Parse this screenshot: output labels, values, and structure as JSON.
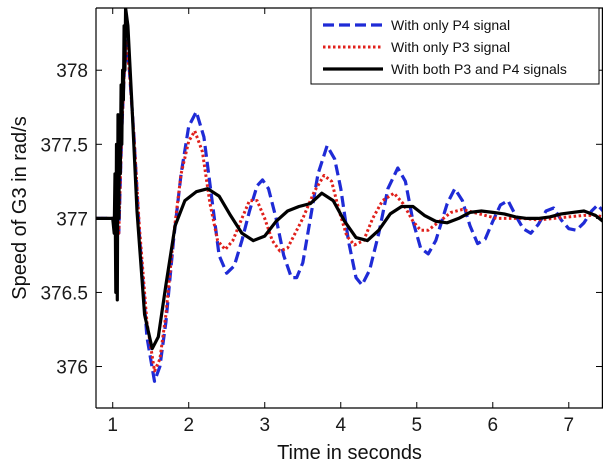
{
  "chart_data": {
    "type": "line",
    "title": "",
    "xlabel": "Time in seconds",
    "ylabel": "Speed of G3 in rad/s",
    "xlim": [
      0.78,
      7.45
    ],
    "ylim": [
      375.72,
      378.42
    ],
    "x_ticks": [
      1,
      2,
      3,
      4,
      5,
      6,
      7
    ],
    "x_tick_labels": [
      "1",
      "2",
      "3",
      "4",
      "5",
      "6",
      "7"
    ],
    "y_ticks": [
      376,
      376.5,
      377,
      377.5,
      378
    ],
    "y_tick_labels": [
      "376",
      "376.5",
      "377",
      "377.5",
      "378"
    ],
    "grid": false,
    "legend_position": "top-right",
    "series": [
      {
        "name": "With only P4 signal",
        "color": "#1f2bd6",
        "style": "dashed",
        "points": [
          [
            0.78,
            377.0
          ],
          [
            1.0,
            377.0
          ],
          [
            1.05,
            377.0
          ],
          [
            1.08,
            376.9
          ],
          [
            1.12,
            377.6
          ],
          [
            1.17,
            378.2
          ],
          [
            1.22,
            378.0
          ],
          [
            1.28,
            377.55
          ],
          [
            1.35,
            376.9
          ],
          [
            1.45,
            376.2
          ],
          [
            1.55,
            375.9
          ],
          [
            1.62,
            376.0
          ],
          [
            1.7,
            376.3
          ],
          [
            1.8,
            376.85
          ],
          [
            1.9,
            377.3
          ],
          [
            2.0,
            377.62
          ],
          [
            2.1,
            377.72
          ],
          [
            2.2,
            377.55
          ],
          [
            2.3,
            377.15
          ],
          [
            2.4,
            376.75
          ],
          [
            2.5,
            376.63
          ],
          [
            2.6,
            376.68
          ],
          [
            2.7,
            376.85
          ],
          [
            2.8,
            377.05
          ],
          [
            2.9,
            377.22
          ],
          [
            2.97,
            377.26
          ],
          [
            3.05,
            377.2
          ],
          [
            3.15,
            377.0
          ],
          [
            3.25,
            376.75
          ],
          [
            3.35,
            376.6
          ],
          [
            3.42,
            376.6
          ],
          [
            3.5,
            376.7
          ],
          [
            3.6,
            377.0
          ],
          [
            3.7,
            377.3
          ],
          [
            3.82,
            377.49
          ],
          [
            3.92,
            377.4
          ],
          [
            4.0,
            377.2
          ],
          [
            4.1,
            376.85
          ],
          [
            4.2,
            376.6
          ],
          [
            4.28,
            376.55
          ],
          [
            4.38,
            376.65
          ],
          [
            4.5,
            376.9
          ],
          [
            4.62,
            377.2
          ],
          [
            4.75,
            377.34
          ],
          [
            4.85,
            377.25
          ],
          [
            4.95,
            376.98
          ],
          [
            5.05,
            376.8
          ],
          [
            5.15,
            376.76
          ],
          [
            5.25,
            376.85
          ],
          [
            5.4,
            377.1
          ],
          [
            5.5,
            377.2
          ],
          [
            5.6,
            377.12
          ],
          [
            5.7,
            376.95
          ],
          [
            5.8,
            376.83
          ],
          [
            5.9,
            376.86
          ],
          [
            6.0,
            376.98
          ],
          [
            6.1,
            377.09
          ],
          [
            6.2,
            377.12
          ],
          [
            6.3,
            377.02
          ],
          [
            6.4,
            376.93
          ],
          [
            6.5,
            376.9
          ],
          [
            6.6,
            376.96
          ],
          [
            6.7,
            377.05
          ],
          [
            6.8,
            377.07
          ],
          [
            6.9,
            376.99
          ],
          [
            7.0,
            376.93
          ],
          [
            7.1,
            376.92
          ],
          [
            7.2,
            376.97
          ],
          [
            7.3,
            377.05
          ],
          [
            7.38,
            377.09
          ],
          [
            7.45,
            377.05
          ]
        ]
      },
      {
        "name": "With only P3 signal",
        "color": "#e0201b",
        "style": "dotted",
        "points": [
          [
            0.78,
            377.0
          ],
          [
            1.0,
            377.0
          ],
          [
            1.05,
            377.0
          ],
          [
            1.08,
            376.9
          ],
          [
            1.12,
            377.6
          ],
          [
            1.17,
            378.2
          ],
          [
            1.22,
            378.0
          ],
          [
            1.28,
            377.55
          ],
          [
            1.35,
            376.95
          ],
          [
            1.45,
            376.3
          ],
          [
            1.55,
            375.97
          ],
          [
            1.62,
            376.05
          ],
          [
            1.7,
            376.35
          ],
          [
            1.8,
            376.88
          ],
          [
            1.9,
            377.3
          ],
          [
            2.0,
            377.52
          ],
          [
            2.08,
            377.59
          ],
          [
            2.18,
            377.45
          ],
          [
            2.28,
            377.1
          ],
          [
            2.38,
            376.85
          ],
          [
            2.48,
            376.79
          ],
          [
            2.58,
            376.85
          ],
          [
            2.7,
            377.0
          ],
          [
            2.8,
            377.12
          ],
          [
            2.9,
            377.12
          ],
          [
            3.0,
            377.0
          ],
          [
            3.1,
            376.85
          ],
          [
            3.2,
            376.78
          ],
          [
            3.3,
            376.8
          ],
          [
            3.4,
            376.9
          ],
          [
            3.5,
            377.0
          ],
          [
            3.65,
            377.18
          ],
          [
            3.78,
            377.29
          ],
          [
            3.88,
            377.25
          ],
          [
            3.98,
            377.05
          ],
          [
            4.08,
            376.88
          ],
          [
            4.18,
            376.82
          ],
          [
            4.3,
            376.85
          ],
          [
            4.42,
            377.0
          ],
          [
            4.55,
            377.12
          ],
          [
            4.7,
            377.17
          ],
          [
            4.82,
            377.1
          ],
          [
            4.95,
            376.98
          ],
          [
            5.05,
            376.92
          ],
          [
            5.15,
            376.92
          ],
          [
            5.3,
            376.98
          ],
          [
            5.45,
            377.04
          ],
          [
            5.6,
            377.06
          ],
          [
            5.75,
            377.04
          ],
          [
            5.9,
            377.02
          ],
          [
            6.05,
            377.0
          ],
          [
            6.2,
            377.0
          ],
          [
            6.4,
            377.0
          ],
          [
            6.6,
            376.99
          ],
          [
            6.8,
            377.0
          ],
          [
            7.0,
            377.01
          ],
          [
            7.2,
            377.02
          ],
          [
            7.35,
            377.02
          ],
          [
            7.45,
            377.01
          ]
        ]
      },
      {
        "name": "With both P3 and P4 signals",
        "color": "#000000",
        "style": "solid",
        "points": [
          [
            0.78,
            377.0
          ],
          [
            1.0,
            377.0
          ],
          [
            1.02,
            376.9
          ],
          [
            1.03,
            377.3
          ],
          [
            1.04,
            376.5
          ],
          [
            1.05,
            377.5
          ],
          [
            1.06,
            376.45
          ],
          [
            1.07,
            377.7
          ],
          [
            1.08,
            377.0
          ],
          [
            1.09,
            377.6
          ],
          [
            1.1,
            377.3
          ],
          [
            1.11,
            377.9
          ],
          [
            1.12,
            377.5
          ],
          [
            1.13,
            378.0
          ],
          [
            1.14,
            377.8
          ],
          [
            1.15,
            378.3
          ],
          [
            1.16,
            378.0
          ],
          [
            1.17,
            378.42
          ],
          [
            1.2,
            378.3
          ],
          [
            1.25,
            377.8
          ],
          [
            1.32,
            377.05
          ],
          [
            1.42,
            376.35
          ],
          [
            1.52,
            376.12
          ],
          [
            1.6,
            376.2
          ],
          [
            1.7,
            376.55
          ],
          [
            1.82,
            376.95
          ],
          [
            1.95,
            377.12
          ],
          [
            2.1,
            377.18
          ],
          [
            2.25,
            377.2
          ],
          [
            2.4,
            377.15
          ],
          [
            2.55,
            377.02
          ],
          [
            2.7,
            376.9
          ],
          [
            2.85,
            376.85
          ],
          [
            3.0,
            376.88
          ],
          [
            3.15,
            376.98
          ],
          [
            3.3,
            377.05
          ],
          [
            3.45,
            377.08
          ],
          [
            3.6,
            377.1
          ],
          [
            3.75,
            377.17
          ],
          [
            3.9,
            377.12
          ],
          [
            4.05,
            376.98
          ],
          [
            4.2,
            376.87
          ],
          [
            4.35,
            376.85
          ],
          [
            4.5,
            376.92
          ],
          [
            4.65,
            377.03
          ],
          [
            4.8,
            377.08
          ],
          [
            4.95,
            377.08
          ],
          [
            5.1,
            377.02
          ],
          [
            5.25,
            376.98
          ],
          [
            5.4,
            376.97
          ],
          [
            5.55,
            377.0
          ],
          [
            5.7,
            377.04
          ],
          [
            5.85,
            377.05
          ],
          [
            6.0,
            377.04
          ],
          [
            6.15,
            377.03
          ],
          [
            6.3,
            377.01
          ],
          [
            6.45,
            377.0
          ],
          [
            6.6,
            377.0
          ],
          [
            6.75,
            377.01
          ],
          [
            6.9,
            377.03
          ],
          [
            7.05,
            377.04
          ],
          [
            7.2,
            377.05
          ],
          [
            7.35,
            377.02
          ],
          [
            7.45,
            376.98
          ]
        ]
      }
    ]
  }
}
